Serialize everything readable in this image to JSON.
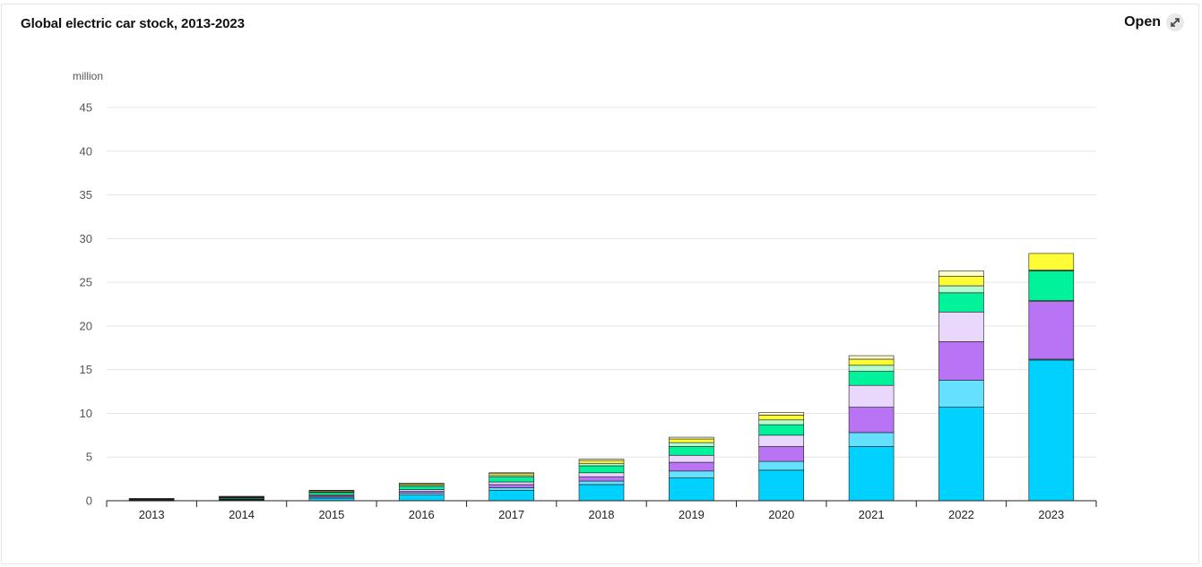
{
  "header": {
    "title": "Global electric car stock, 2013-2023",
    "open_label": "Open",
    "open_icon": "expand-icon"
  },
  "chart_data": {
    "type": "bar",
    "stacked": true,
    "unit_label": "million",
    "categories": [
      "2013",
      "2014",
      "2015",
      "2016",
      "2017",
      "2018",
      "2019",
      "2020",
      "2021",
      "2022",
      "2023"
    ],
    "ylim": [
      0,
      45
    ],
    "yticks": [
      0,
      5,
      10,
      15,
      20,
      25,
      30,
      35,
      40,
      45
    ],
    "grid": true,
    "legend": "none",
    "series": [
      {
        "color": "#00d1ff",
        "values": [
          0.02,
          0.08,
          0.3,
          0.65,
          1.2,
          1.85,
          2.6,
          3.5,
          6.2,
          10.7,
          16.1
        ]
      },
      {
        "color": "#66e0ff",
        "values": [
          0.01,
          0.04,
          0.12,
          0.2,
          0.3,
          0.4,
          0.8,
          1.0,
          1.6,
          3.1,
          0.1
        ]
      },
      {
        "color": "#b974f5",
        "values": [
          0.03,
          0.06,
          0.15,
          0.22,
          0.35,
          0.5,
          1.0,
          1.7,
          2.9,
          4.4,
          6.6
        ]
      },
      {
        "color": "#ead7fc",
        "values": [
          0.02,
          0.05,
          0.12,
          0.2,
          0.3,
          0.45,
          0.8,
          1.3,
          2.5,
          3.4,
          0.1
        ]
      },
      {
        "color": "#00f29a",
        "values": [
          0.08,
          0.12,
          0.25,
          0.38,
          0.55,
          0.8,
          1.0,
          1.2,
          1.6,
          2.2,
          3.4
        ]
      },
      {
        "color": "#b4fccf",
        "values": [
          0.02,
          0.04,
          0.08,
          0.12,
          0.18,
          0.28,
          0.45,
          0.55,
          0.7,
          0.8,
          0.1
        ]
      },
      {
        "color": "#fffb34",
        "values": [
          0.05,
          0.08,
          0.12,
          0.16,
          0.22,
          0.32,
          0.42,
          0.55,
          0.7,
          1.1,
          1.9
        ]
      },
      {
        "color": "#fffed0",
        "values": [
          0.03,
          0.04,
          0.06,
          0.08,
          0.1,
          0.15,
          0.2,
          0.3,
          0.4,
          0.6,
          0.0
        ]
      }
    ]
  }
}
